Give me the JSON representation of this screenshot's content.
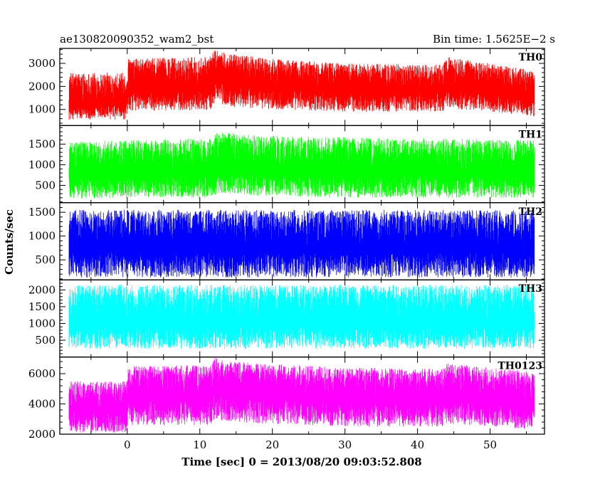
{
  "header": {
    "left_title": "ae130820090352_wam2_bst",
    "right_title": "Bin time: 1.5625E−2 s"
  },
  "axes": {
    "ylabel": "Counts/sec",
    "xlabel": "Time [sec] 0 = 2013/08/20 09:03:52.808",
    "xlim": [
      -9.3,
      57.5
    ],
    "x_ticks": [
      0,
      10,
      20,
      30,
      40,
      50
    ],
    "data_start": -8,
    "data_end": 56
  },
  "chart_data": {
    "type": "line",
    "title": "ae130820090352_wam2_bst",
    "xlabel": "Time [sec] 0 = 2013/08/20 09:03:52.808",
    "ylabel": "Counts/sec",
    "panels": [
      {
        "name": "TH0",
        "color": "#ff0000",
        "ylim": [
          300,
          3650
        ],
        "y_ticks": [
          1000,
          2000,
          3000
        ],
        "envelope": [
          {
            "x": -8,
            "low": 550,
            "high": 2600,
            "mid": 1300
          },
          {
            "x": -0.1,
            "low": 550,
            "high": 2600,
            "mid": 1300
          },
          {
            "x": 0.1,
            "low": 950,
            "high": 3200,
            "mid": 1950
          },
          {
            "x": 11.5,
            "low": 950,
            "high": 3300,
            "mid": 2000
          },
          {
            "x": 12,
            "low": 1300,
            "high": 3650,
            "mid": 2550
          },
          {
            "x": 14,
            "low": 1100,
            "high": 3400,
            "mid": 2250
          },
          {
            "x": 20,
            "low": 1000,
            "high": 3200,
            "mid": 2050
          },
          {
            "x": 30,
            "low": 900,
            "high": 3000,
            "mid": 1900
          },
          {
            "x": 43.5,
            "low": 900,
            "high": 2950,
            "mid": 1850
          },
          {
            "x": 44,
            "low": 1050,
            "high": 3300,
            "mid": 2100
          },
          {
            "x": 50,
            "low": 900,
            "high": 3000,
            "mid": 1850
          },
          {
            "x": 56,
            "low": 700,
            "high": 2700,
            "mid": 1550
          }
        ]
      },
      {
        "name": "TH1",
        "color": "#00ff00",
        "ylim": [
          80,
          1950
        ],
        "y_ticks": [
          500,
          1000,
          1500
        ],
        "envelope": [
          {
            "x": -8,
            "low": 180,
            "high": 1550,
            "mid": 800
          },
          {
            "x": 11.5,
            "low": 200,
            "high": 1650,
            "mid": 830
          },
          {
            "x": 12.5,
            "low": 300,
            "high": 1800,
            "mid": 950
          },
          {
            "x": 20,
            "low": 230,
            "high": 1700,
            "mid": 880
          },
          {
            "x": 35,
            "low": 200,
            "high": 1650,
            "mid": 850
          },
          {
            "x": 56,
            "low": 200,
            "high": 1600,
            "mid": 820
          }
        ]
      },
      {
        "name": "TH2",
        "color": "#0000ff",
        "ylim": [
          80,
          1700
        ],
        "y_ticks": [
          500,
          1000,
          1500
        ],
        "envelope": [
          {
            "x": -8,
            "low": 130,
            "high": 1550,
            "mid": 750
          },
          {
            "x": 56,
            "low": 130,
            "high": 1550,
            "mid": 750
          }
        ]
      },
      {
        "name": "TH3",
        "color": "#00ffff",
        "ylim": [
          0,
          2300
        ],
        "y_ticks": [
          500,
          1000,
          1500,
          2000
        ],
        "envelope": [
          {
            "x": -8,
            "low": 250,
            "high": 2150,
            "mid": 1050
          },
          {
            "x": 56,
            "low": 250,
            "high": 2150,
            "mid": 1050
          }
        ]
      },
      {
        "name": "TH0123",
        "color": "#ff00ff",
        "ylim": [
          2000,
          7100
        ],
        "y_ticks": [
          2000,
          4000,
          6000
        ],
        "envelope": [
          {
            "x": -8,
            "low": 2100,
            "high": 5500,
            "mid": 3700
          },
          {
            "x": -0.1,
            "low": 2100,
            "high": 5500,
            "mid": 3700
          },
          {
            "x": 0.1,
            "low": 2550,
            "high": 6500,
            "mid": 4450
          },
          {
            "x": 11.5,
            "low": 2600,
            "high": 6600,
            "mid": 4550
          },
          {
            "x": 12,
            "low": 3000,
            "high": 7100,
            "mid": 5200
          },
          {
            "x": 14,
            "low": 2800,
            "high": 6800,
            "mid": 4800
          },
          {
            "x": 30,
            "low": 2500,
            "high": 6400,
            "mid": 4400
          },
          {
            "x": 43.5,
            "low": 2500,
            "high": 6300,
            "mid": 4300
          },
          {
            "x": 44,
            "low": 2700,
            "high": 6700,
            "mid": 4600
          },
          {
            "x": 56,
            "low": 2300,
            "high": 6100,
            "mid": 4100
          }
        ]
      }
    ]
  }
}
